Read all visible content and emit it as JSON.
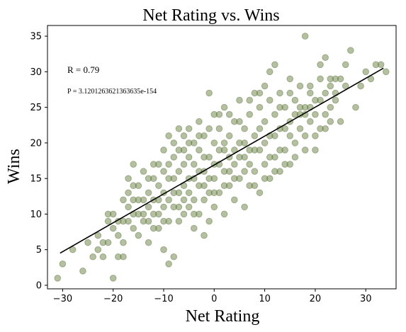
{
  "chart_data": {
    "type": "scatter",
    "title": "Net Rating vs. Wins",
    "xlabel": "Net Rating",
    "ylabel": "Wins",
    "xlim": [
      -33,
      36
    ],
    "ylim": [
      -0.5,
      36.5
    ],
    "xticks": [
      -30,
      -20,
      -10,
      0,
      10,
      20,
      30
    ],
    "yticks": [
      0,
      5,
      10,
      15,
      20,
      25,
      30,
      35
    ],
    "grid": false,
    "annotations": {
      "r": "R = 0.79",
      "p": "P = 3.1201263621363635e-154"
    },
    "regression": {
      "slope": 0.406,
      "intercept": 16.9,
      "x_range": [
        -30.5,
        33.5
      ]
    },
    "colors": {
      "points": "#6b8148",
      "line": "#000000"
    },
    "points": [
      [
        -31,
        1
      ],
      [
        -30,
        3
      ],
      [
        -28,
        5
      ],
      [
        -26,
        2
      ],
      [
        -25,
        6
      ],
      [
        -24,
        4
      ],
      [
        -23,
        5
      ],
      [
        -22,
        4
      ],
      [
        -22,
        6
      ],
      [
        -21,
        9
      ],
      [
        -21,
        10
      ],
      [
        -20,
        8
      ],
      [
        -20,
        1
      ],
      [
        -19,
        4
      ],
      [
        -19,
        7
      ],
      [
        -18,
        6
      ],
      [
        -18,
        9
      ],
      [
        -17,
        11
      ],
      [
        -17,
        13
      ],
      [
        -17,
        15
      ],
      [
        -16,
        8
      ],
      [
        -16,
        12
      ],
      [
        -16,
        17
      ],
      [
        -15,
        7
      ],
      [
        -15,
        10
      ],
      [
        -15,
        14
      ],
      [
        -14,
        9
      ],
      [
        -14,
        16
      ],
      [
        -13,
        6
      ],
      [
        -13,
        11
      ],
      [
        -13,
        13
      ],
      [
        -12,
        8
      ],
      [
        -12,
        12
      ],
      [
        -12,
        15
      ],
      [
        -11,
        10
      ],
      [
        -11,
        14
      ],
      [
        -11,
        17
      ],
      [
        -10,
        5
      ],
      [
        -10,
        13
      ],
      [
        -10,
        16
      ],
      [
        -10,
        19
      ],
      [
        -9,
        3
      ],
      [
        -9,
        9
      ],
      [
        -9,
        15
      ],
      [
        -9,
        21
      ],
      [
        -8,
        4
      ],
      [
        -8,
        11
      ],
      [
        -8,
        18
      ],
      [
        -8,
        20
      ],
      [
        -7,
        9
      ],
      [
        -7,
        13
      ],
      [
        -7,
        16
      ],
      [
        -7,
        22
      ],
      [
        -6,
        10
      ],
      [
        -6,
        14
      ],
      [
        -6,
        19
      ],
      [
        -6,
        21
      ],
      [
        -5,
        11
      ],
      [
        -5,
        15
      ],
      [
        -5,
        18
      ],
      [
        -5,
        22
      ],
      [
        -4,
        8
      ],
      [
        -4,
        12
      ],
      [
        -4,
        17
      ],
      [
        -4,
        20
      ],
      [
        -3,
        10
      ],
      [
        -3,
        14
      ],
      [
        -3,
        19
      ],
      [
        -3,
        23
      ],
      [
        -2,
        7
      ],
      [
        -2,
        12
      ],
      [
        -2,
        16
      ],
      [
        -2,
        21
      ],
      [
        -1,
        9
      ],
      [
        -1,
        13
      ],
      [
        -1,
        18
      ],
      [
        -1,
        27
      ],
      [
        0,
        11
      ],
      [
        0,
        15
      ],
      [
        0,
        20
      ],
      [
        0,
        24
      ],
      [
        1,
        13
      ],
      [
        1,
        17
      ],
      [
        1,
        22
      ],
      [
        2,
        10
      ],
      [
        2,
        16
      ],
      [
        2,
        19
      ],
      [
        2,
        25
      ],
      [
        3,
        14
      ],
      [
        3,
        18
      ],
      [
        3,
        21
      ],
      [
        4,
        12
      ],
      [
        4,
        17
      ],
      [
        4,
        23
      ],
      [
        5,
        15
      ],
      [
        5,
        20
      ],
      [
        5,
        26
      ],
      [
        6,
        11
      ],
      [
        6,
        18
      ],
      [
        6,
        22
      ],
      [
        7,
        14
      ],
      [
        7,
        19
      ],
      [
        7,
        24
      ],
      [
        8,
        16
      ],
      [
        8,
        21
      ],
      [
        8,
        27
      ],
      [
        9,
        13
      ],
      [
        9,
        19
      ],
      [
        9,
        25
      ],
      [
        10,
        17
      ],
      [
        10,
        23
      ],
      [
        10,
        28
      ],
      [
        11,
        15
      ],
      [
        11,
        21
      ],
      [
        11,
        30
      ],
      [
        12,
        18
      ],
      [
        12,
        24
      ],
      [
        12,
        31
      ],
      [
        13,
        16
      ],
      [
        13,
        22
      ],
      [
        13,
        27
      ],
      [
        14,
        19
      ],
      [
        14,
        25
      ],
      [
        15,
        17
      ],
      [
        15,
        23
      ],
      [
        15,
        29
      ],
      [
        16,
        20
      ],
      [
        16,
        26
      ],
      [
        17,
        22
      ],
      [
        17,
        28
      ],
      [
        18,
        35
      ],
      [
        18,
        21
      ],
      [
        18,
        25
      ],
      [
        19,
        23
      ],
      [
        19,
        27
      ],
      [
        20,
        19
      ],
      [
        20,
        24
      ],
      [
        21,
        26
      ],
      [
        21,
        29
      ],
      [
        22,
        32
      ],
      [
        22,
        22
      ],
      [
        23,
        25
      ],
      [
        23,
        28
      ],
      [
        24,
        27
      ],
      [
        25,
        23
      ],
      [
        25,
        29
      ],
      [
        26,
        31
      ],
      [
        27,
        33
      ],
      [
        28,
        25
      ],
      [
        29,
        28
      ],
      [
        30,
        30
      ],
      [
        31,
        29
      ],
      [
        32,
        31
      ],
      [
        33,
        31
      ],
      [
        34,
        30
      ],
      [
        -23,
        7
      ],
      [
        -20,
        10
      ],
      [
        -18,
        12
      ],
      [
        -16,
        14
      ],
      [
        -14,
        12
      ],
      [
        -12,
        17
      ],
      [
        -10,
        11
      ],
      [
        -8,
        13
      ],
      [
        -6,
        17
      ],
      [
        -4,
        15
      ],
      [
        -2,
        18
      ],
      [
        0,
        17
      ],
      [
        2,
        20
      ],
      [
        4,
        19
      ],
      [
        6,
        20
      ],
      [
        8,
        19
      ],
      [
        10,
        20
      ],
      [
        12,
        21
      ],
      [
        14,
        22
      ],
      [
        16,
        24
      ],
      [
        18,
        24
      ],
      [
        20,
        26
      ],
      [
        22,
        27
      ],
      [
        24,
        29
      ],
      [
        26,
        28
      ],
      [
        -19,
        9
      ],
      [
        -17,
        9
      ],
      [
        -15,
        12
      ],
      [
        -13,
        15
      ],
      [
        -11,
        12
      ],
      [
        -9,
        17
      ],
      [
        -7,
        11
      ],
      [
        -5,
        13
      ],
      [
        -3,
        16
      ],
      [
        -1,
        15
      ],
      [
        1,
        19
      ],
      [
        3,
        16
      ],
      [
        5,
        18
      ],
      [
        7,
        17
      ],
      [
        9,
        22
      ],
      [
        11,
        18
      ],
      [
        13,
        19
      ],
      [
        15,
        21
      ],
      [
        17,
        24
      ],
      [
        19,
        25
      ],
      [
        21,
        22
      ],
      [
        23,
        23
      ],
      [
        -21,
        6
      ],
      [
        -18,
        4
      ],
      [
        -14,
        10
      ],
      [
        -12,
        10
      ],
      [
        -10,
        9
      ],
      [
        -8,
        15
      ],
      [
        -6,
        12
      ],
      [
        -4,
        10
      ],
      [
        -2,
        14
      ],
      [
        0,
        13
      ],
      [
        2,
        14
      ],
      [
        4,
        15
      ],
      [
        6,
        16
      ],
      [
        8,
        14
      ],
      [
        10,
        15
      ],
      [
        12,
        16
      ],
      [
        14,
        17
      ],
      [
        16,
        18
      ],
      [
        18,
        19
      ],
      [
        20,
        21
      ],
      [
        22,
        24
      ],
      [
        24,
        26
      ],
      [
        -16,
        10
      ],
      [
        -13,
        9
      ],
      [
        -11,
        8
      ],
      [
        -9,
        12
      ],
      [
        -7,
        19
      ],
      [
        -5,
        20
      ],
      [
        -3,
        21
      ],
      [
        -1,
        22
      ],
      [
        1,
        24
      ],
      [
        3,
        24
      ],
      [
        5,
        23
      ],
      [
        7,
        26
      ],
      [
        9,
        27
      ],
      [
        11,
        26
      ],
      [
        13,
        25
      ],
      [
        15,
        27
      ],
      [
        17,
        25
      ],
      [
        19,
        28
      ],
      [
        21,
        31
      ],
      [
        23,
        29
      ]
    ]
  }
}
